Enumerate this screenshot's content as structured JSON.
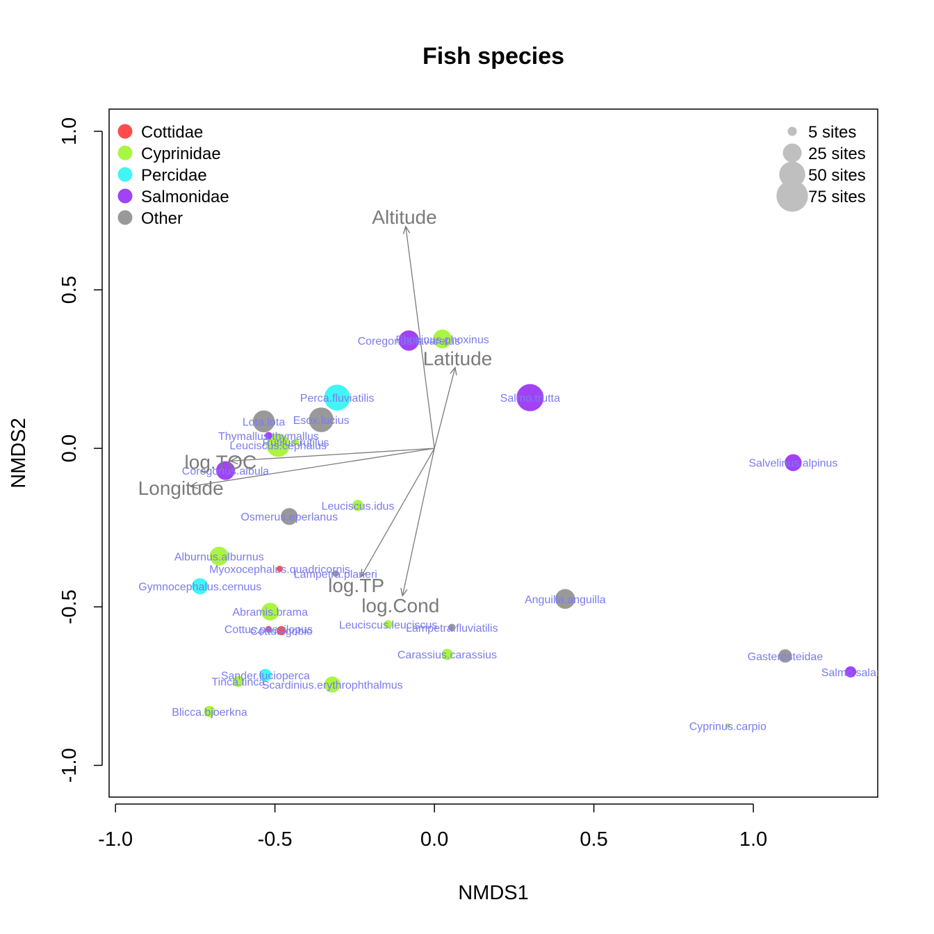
{
  "chart_data": {
    "type": "scatter",
    "title": "Fish species",
    "xlabel": "NMDS1",
    "ylabel": "NMDS2",
    "xlim": [
      -1.02,
      1.39
    ],
    "ylim": [
      -1.1,
      1.07
    ],
    "x_ticks": [
      -1.0,
      -0.5,
      0.0,
      0.5,
      1.0
    ],
    "x_tick_labels": [
      "-1.0",
      "-0.5",
      "0.0",
      "0.5",
      "1.0"
    ],
    "y_ticks": [
      -1.0,
      -0.5,
      0.0,
      0.5,
      1.0
    ],
    "y_tick_labels": [
      "-1.0",
      "-0.5",
      "0.0",
      "0.5",
      "1.0"
    ],
    "grid": false,
    "legend_family": {
      "placement": "top-left",
      "entries": [
        {
          "name": "Cottidae",
          "color": "#ff4d4d"
        },
        {
          "name": "Cyprinidae",
          "color": "#aaf542"
        },
        {
          "name": "Percidae",
          "color": "#42f5f5"
        },
        {
          "name": "Salmonidae",
          "color": "#a142f5"
        },
        {
          "name": "Other",
          "color": "#999999"
        }
      ]
    },
    "legend_size": {
      "placement": "top-right",
      "color": "#bfbfbf",
      "entries": [
        {
          "label": "5 sites",
          "sites": 5
        },
        {
          "label": "25 sites",
          "sites": 25
        },
        {
          "label": "50 sites",
          "sites": 50
        },
        {
          "label": "75 sites",
          "sites": 75
        }
      ]
    },
    "species": [
      {
        "name": "Coregonus.lavaretus",
        "family": "Salmonidae",
        "x": -0.08,
        "y": 0.34,
        "sites": 30
      },
      {
        "name": "Phoxinus.phoxinus",
        "family": "Cyprinidae",
        "x": 0.025,
        "y": 0.345,
        "sites": 25
      },
      {
        "name": "Salmo.trutta",
        "family": "Salmonidae",
        "x": 0.3,
        "y": 0.16,
        "sites": 55
      },
      {
        "name": "Perca.fluviatilis",
        "family": "Percidae",
        "x": -0.305,
        "y": 0.16,
        "sites": 50
      },
      {
        "name": "Lota.lota",
        "family": "Other",
        "x": -0.535,
        "y": 0.085,
        "sites": 35
      },
      {
        "name": "Esox.lucius",
        "family": "Other",
        "x": -0.355,
        "y": 0.09,
        "sites": 45
      },
      {
        "name": "Thymallus.thymallus",
        "family": "Salmonidae",
        "x": -0.52,
        "y": 0.04,
        "sites": 3
      },
      {
        "name": "Leuciscus.cephalus",
        "family": "Cyprinidae",
        "x": -0.49,
        "y": 0.01,
        "sites": 40
      },
      {
        "name": "Rutilus.rutilus",
        "family": "Cyprinidae",
        "x": -0.435,
        "y": 0.02,
        "sites": 2
      },
      {
        "name": "Coregonus.albula",
        "family": "Salmonidae",
        "x": -0.655,
        "y": -0.07,
        "sites": 25
      },
      {
        "name": "Salvelinus.alpinus",
        "family": "Salmonidae",
        "x": 1.125,
        "y": -0.045,
        "sites": 20
      },
      {
        "name": "Leuciscus.idus",
        "family": "Cyprinidae",
        "x": -0.24,
        "y": -0.18,
        "sites": 8
      },
      {
        "name": "Osmerus.eperlanus",
        "family": "Other",
        "x": -0.455,
        "y": -0.215,
        "sites": 20
      },
      {
        "name": "Alburnus.alburnus",
        "family": "Cyprinidae",
        "x": -0.675,
        "y": -0.34,
        "sites": 25
      },
      {
        "name": "Myoxocephalus.quadricornis",
        "family": "Cottidae",
        "x": -0.485,
        "y": -0.38,
        "sites": 2
      },
      {
        "name": "Lampetra.planeri",
        "family": "Other",
        "x": -0.31,
        "y": -0.395,
        "sites": 2
      },
      {
        "name": "Gymnocephalus.cernuus",
        "family": "Percidae",
        "x": -0.735,
        "y": -0.435,
        "sites": 18
      },
      {
        "name": "Anguilla.anguilla",
        "family": "Other",
        "x": 0.41,
        "y": -0.475,
        "sites": 28
      },
      {
        "name": "Abramis.brama",
        "family": "Cyprinidae",
        "x": -0.515,
        "y": -0.515,
        "sites": 22
      },
      {
        "name": "Cottus.poecilopus",
        "family": "Cottidae",
        "x": -0.52,
        "y": -0.57,
        "sites": 2
      },
      {
        "name": "Cottus.gobio",
        "family": "Cottidae",
        "x": -0.48,
        "y": -0.575,
        "sites": 5
      },
      {
        "name": "Leuciscus.leuciscus",
        "family": "Cyprinidae",
        "x": -0.145,
        "y": -0.555,
        "sites": 4
      },
      {
        "name": "Lampetra.fluviatilis",
        "family": "Other",
        "x": 0.055,
        "y": -0.565,
        "sites": 3
      },
      {
        "name": "Carassius.carassius",
        "family": "Cyprinidae",
        "x": 0.04,
        "y": -0.65,
        "sites": 8
      },
      {
        "name": "Gasterosteidae",
        "family": "Other",
        "x": 1.1,
        "y": -0.655,
        "sites": 12
      },
      {
        "name": "Salmo.salar",
        "family": "Salmonidae",
        "x": 1.305,
        "y": -0.705,
        "sites": 8
      },
      {
        "name": "Sander.lucioperca",
        "family": "Percidae",
        "x": -0.53,
        "y": -0.715,
        "sites": 10
      },
      {
        "name": "Tinca.tinca",
        "family": "Cyprinidae",
        "x": -0.615,
        "y": -0.735,
        "sites": 8
      },
      {
        "name": "Scardinius.erythrophthalmus",
        "family": "Cyprinidae",
        "x": -0.32,
        "y": -0.745,
        "sites": 18
      },
      {
        "name": "Blicca.bjoerkna",
        "family": "Cyprinidae",
        "x": -0.705,
        "y": -0.83,
        "sites": 8
      },
      {
        "name": "Cyprinus.carpio",
        "family": "Cyprinidae",
        "x": 0.92,
        "y": -0.875,
        "sites": 1
      }
    ],
    "env_vectors": [
      {
        "name": "Altitude",
        "x": -0.09,
        "y": 0.7
      },
      {
        "name": "Latitude",
        "x": 0.065,
        "y": 0.255
      },
      {
        "name": "log.TOC",
        "x": -0.64,
        "y": -0.04
      },
      {
        "name": "Longitude",
        "x": -0.765,
        "y": -0.12
      },
      {
        "name": "log.TP",
        "x": -0.23,
        "y": -0.405
      },
      {
        "name": "log.Cond",
        "x": -0.1,
        "y": -0.465
      }
    ]
  }
}
